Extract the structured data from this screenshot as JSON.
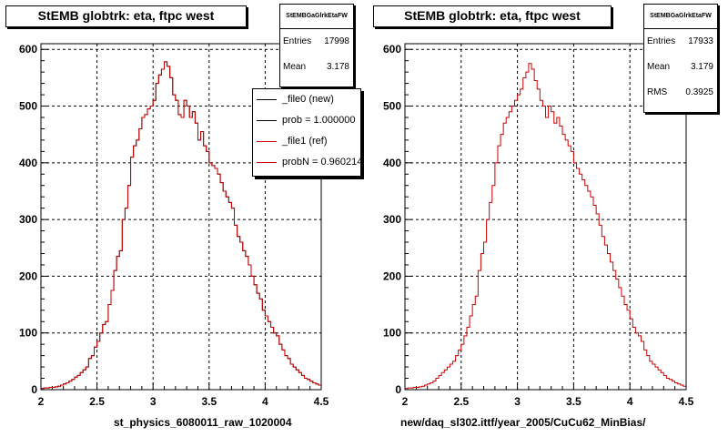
{
  "colors": {
    "ref": "#cc0000",
    "new": "#000000",
    "grid": "#000000"
  },
  "panels": [
    {
      "title": "StEMB globtrk: eta, ftpc west",
      "stats": {
        "name": "StEMBGaGlrkEtaFW",
        "entries_label": "Entries",
        "entries": "17998",
        "mean_label": "Mean",
        "mean": "3.178"
      },
      "xtitle": "st_physics_6080011_raw_1020004",
      "legend": [
        {
          "label": "_file0 (new)",
          "color": "#000000"
        },
        {
          "label": "prob = 1.000000",
          "color": "#000000"
        },
        {
          "label": "_file1 (ref)",
          "color": "#cc0000"
        },
        {
          "label": "probN = 0.960214",
          "color": "#cc0000"
        }
      ]
    },
    {
      "title": "StEMB globtrk: eta, ftpc west",
      "stats": {
        "name": "StEMBGaGlrkEtaFW",
        "entries_label": "Entries",
        "entries": "17933",
        "mean_label": "Mean",
        "mean": "3.179",
        "rms_label": "RMS",
        "rms": "0.3925"
      },
      "xtitle": "new/daq_sl302.ittf/year_2005/CuCu62_MinBias/"
    }
  ],
  "chart_data": [
    {
      "type": "line",
      "title": "StEMB globtrk: eta, ftpc west",
      "xlabel": "st_physics_6080011_raw_1020004",
      "ylabel": "",
      "xlim": [
        2,
        4.5
      ],
      "ylim": [
        0,
        610
      ],
      "grid": true,
      "legend_position": "top-right",
      "xticks": [
        2,
        2.5,
        3,
        3.5,
        4,
        4.5
      ],
      "yticks": [
        0,
        100,
        200,
        300,
        400,
        500,
        600
      ],
      "bin_edges_start": 2.0,
      "bin_width": 0.025,
      "series": [
        {
          "name": "_file1 (ref)",
          "values": [
            2,
            3,
            3,
            4,
            4,
            5,
            6,
            8,
            10,
            12,
            15,
            18,
            22,
            25,
            30,
            35,
            40,
            55,
            60,
            75,
            85,
            100,
            115,
            120,
            150,
            175,
            210,
            235,
            245,
            300,
            320,
            360,
            410,
            430,
            440,
            460,
            480,
            485,
            495,
            500,
            510,
            540,
            555,
            565,
            578,
            570,
            550,
            520,
            510,
            485,
            480,
            510,
            500,
            480,
            490,
            470,
            440,
            455,
            430,
            420,
            400,
            395,
            390,
            380,
            365,
            350,
            340,
            330,
            320,
            290,
            270,
            260,
            245,
            235,
            220,
            200,
            185,
            170,
            160,
            140,
            130,
            120,
            110,
            100,
            95,
            80,
            70,
            60,
            55,
            45,
            40,
            35,
            30,
            25,
            20,
            18,
            15,
            12,
            10,
            8
          ]
        },
        {
          "name": "_file0 (new)",
          "values": [
            2,
            3,
            3,
            4,
            4,
            5,
            6,
            8,
            10,
            12,
            15,
            18,
            22,
            25,
            30,
            35,
            40,
            55,
            60,
            75,
            85,
            100,
            115,
            120,
            150,
            175,
            210,
            235,
            245,
            300,
            320,
            360,
            410,
            430,
            440,
            460,
            480,
            485,
            495,
            500,
            510,
            540,
            555,
            565,
            578,
            570,
            550,
            520,
            510,
            485,
            480,
            510,
            500,
            480,
            490,
            470,
            440,
            455,
            430,
            420,
            400,
            395,
            390,
            380,
            365,
            350,
            340,
            330,
            320,
            290,
            270,
            260,
            245,
            235,
            220,
            200,
            185,
            170,
            160,
            140,
            130,
            120,
            110,
            100,
            95,
            80,
            70,
            60,
            55,
            45,
            40,
            35,
            30,
            25,
            20,
            18,
            15,
            12,
            10,
            8
          ]
        }
      ]
    },
    {
      "type": "line",
      "title": "StEMB globtrk: eta, ftpc west",
      "xlabel": "new/daq_sl302.ittf/year_2005/CuCu62_MinBias/",
      "ylabel": "",
      "xlim": [
        2,
        4.5
      ],
      "ylim": [
        0,
        610
      ],
      "grid": true,
      "xticks": [
        2,
        2.5,
        3,
        3.5,
        4,
        4.5
      ],
      "yticks": [
        0,
        100,
        200,
        300,
        400,
        500,
        600
      ],
      "bin_edges_start": 2.0,
      "bin_width": 0.025,
      "series": [
        {
          "name": "",
          "values": [
            2,
            3,
            3,
            4,
            4,
            5,
            6,
            8,
            10,
            12,
            15,
            20,
            25,
            30,
            35,
            40,
            45,
            50,
            60,
            70,
            80,
            95,
            110,
            130,
            150,
            165,
            210,
            240,
            260,
            300,
            330,
            360,
            400,
            430,
            450,
            470,
            480,
            490,
            500,
            510,
            520,
            530,
            550,
            560,
            575,
            565,
            545,
            530,
            510,
            500,
            480,
            500,
            490,
            470,
            480,
            465,
            450,
            440,
            430,
            420,
            400,
            390,
            380,
            370,
            360,
            350,
            340,
            325,
            310,
            290,
            270,
            255,
            240,
            225,
            210,
            195,
            180,
            165,
            150,
            140,
            125,
            110,
            100,
            95,
            85,
            70,
            60,
            50,
            45,
            40,
            35,
            30,
            25,
            20,
            18,
            15,
            12,
            10,
            8,
            6
          ]
        }
      ]
    }
  ]
}
